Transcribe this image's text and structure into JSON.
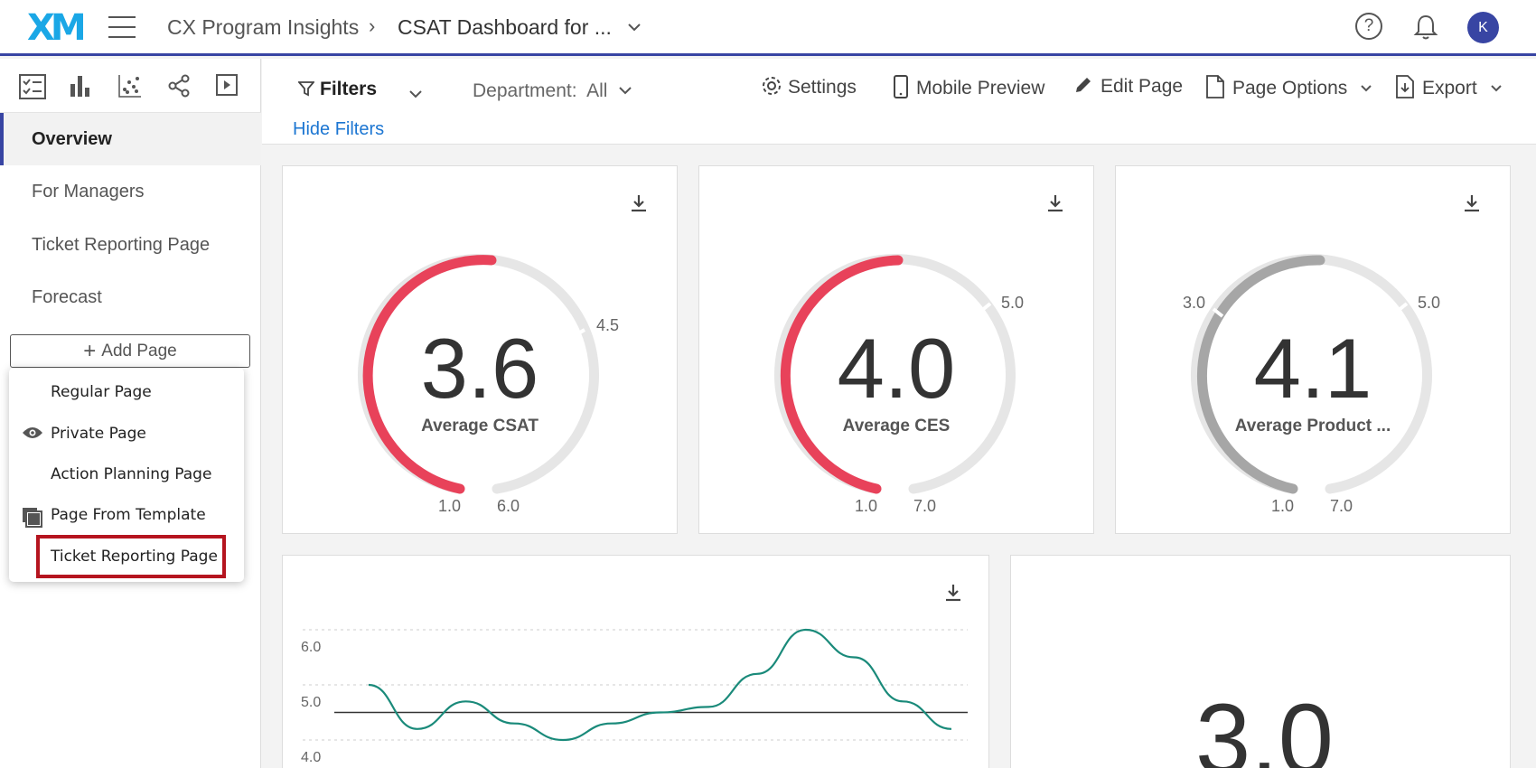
{
  "header": {
    "logo": "XM",
    "breadcrumb_root": "CX Program Insights",
    "breadcrumb_current": "CSAT Dashboard for ...",
    "avatar_initial": "K"
  },
  "sidebar": {
    "pages": [
      {
        "label": "Overview",
        "active": true
      },
      {
        "label": "For Managers",
        "active": false
      },
      {
        "label": "Ticket Reporting Page",
        "active": false
      },
      {
        "label": "Forecast",
        "active": false
      }
    ],
    "add_page_label": "Add Page",
    "add_menu": [
      {
        "label": "Regular Page",
        "icon": ""
      },
      {
        "label": "Private Page",
        "icon": "eye-icon"
      },
      {
        "label": "Action Planning Page",
        "icon": ""
      },
      {
        "label": "Page From Template",
        "icon": "copy-pages-icon"
      },
      {
        "label": "Ticket Reporting Page",
        "icon": ""
      }
    ]
  },
  "toolbar": {
    "filters_label": "Filters",
    "department_label": "Department:",
    "department_value": "All",
    "hide_filters": "Hide Filters",
    "settings": "Settings",
    "mobile_preview": "Mobile Preview",
    "edit_page": "Edit Page",
    "page_options": "Page Options",
    "export": "Export"
  },
  "gauges": [
    {
      "value": "3.6",
      "label": "Average CSAT",
      "min": "1.0",
      "max": "6.0",
      "target": "4.5",
      "color": "#e8425a"
    },
    {
      "value": "4.0",
      "label": "Average CES",
      "min": "1.0",
      "max": "7.0",
      "target": "5.0",
      "color": "#e8425a"
    },
    {
      "value": "4.1",
      "label": "Average Product ...",
      "min": "1.0",
      "max": "7.0",
      "target_low": "3.0",
      "target": "5.0",
      "color": "#a6a6a6"
    }
  ],
  "chart_data": {
    "type": "line",
    "y_ticks": [
      "6.0",
      "5.0",
      "4.0"
    ],
    "ylim": [
      4.0,
      6.0
    ],
    "reference_line": 4.5,
    "series": [
      {
        "values": [
          5.0,
          4.2,
          4.7,
          4.3,
          4.0,
          4.3,
          4.5,
          4.6,
          5.2,
          6.0,
          5.5,
          4.7,
          4.2
        ]
      }
    ],
    "color": "#1a8a7a"
  },
  "kpi": {
    "value": "3.0"
  }
}
